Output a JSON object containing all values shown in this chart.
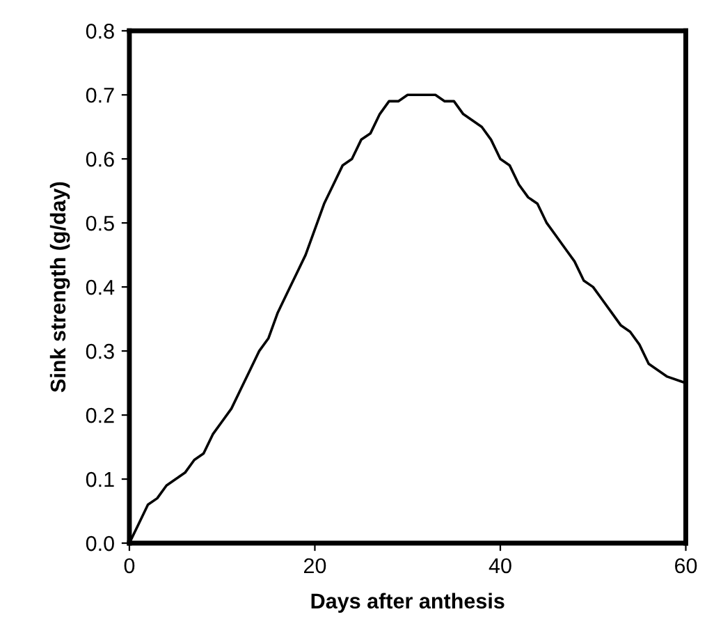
{
  "chart_data": {
    "type": "line",
    "xlabel": "Days after anthesis",
    "ylabel": "Sink strength (g/day)",
    "x": [
      0,
      1,
      2,
      3,
      4,
      5,
      6,
      7,
      8,
      9,
      10,
      11,
      12,
      13,
      14,
      15,
      16,
      17,
      18,
      19,
      20,
      21,
      22,
      23,
      24,
      25,
      26,
      27,
      28,
      29,
      30,
      33,
      34,
      35,
      36,
      37,
      38,
      39,
      40,
      41,
      42,
      43,
      44,
      45,
      46,
      47,
      48,
      49,
      50,
      51,
      52,
      53,
      54,
      55,
      56,
      57,
      58,
      60
    ],
    "series": [
      {
        "color": "#000000",
        "values": [
          0,
          0.03,
          0.06,
          0.07,
          0.09,
          0.1,
          0.11,
          0.13,
          0.14,
          0.17,
          0.19,
          0.21,
          0.24,
          0.27,
          0.3,
          0.32,
          0.36,
          0.39,
          0.42,
          0.45,
          0.49,
          0.53,
          0.56,
          0.59,
          0.6,
          0.63,
          0.64,
          0.67,
          0.69,
          0.69,
          0.7,
          0.7,
          0.69,
          0.69,
          0.67,
          0.66,
          0.65,
          0.63,
          0.6,
          0.59,
          0.56,
          0.54,
          0.53,
          0.5,
          0.48,
          0.46,
          0.44,
          0.41,
          0.4,
          0.38,
          0.36,
          0.34,
          0.33,
          0.31,
          0.28,
          0.27,
          0.26,
          0.25
        ]
      }
    ],
    "xlim": [
      0,
      60
    ],
    "xticks": [
      0,
      20,
      40,
      60
    ],
    "ylim": [
      0,
      0.8
    ],
    "yticks": [
      {
        "value": 0,
        "label": "0.0"
      },
      0.1,
      0.2,
      0.3,
      0.4,
      0.5,
      0.6,
      0.7,
      0.8
    ],
    "grid": false,
    "legend": false,
    "marker": "none",
    "line_style": "solid"
  }
}
